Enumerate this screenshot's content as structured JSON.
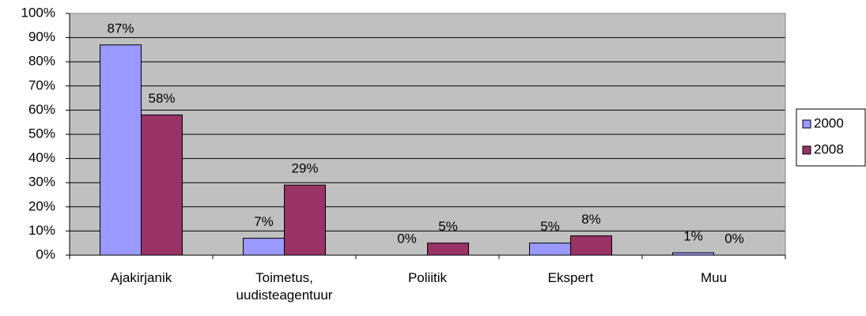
{
  "chart_data": {
    "type": "bar",
    "categories": [
      "Ajakirjanik",
      "Toimetus, uudisteagentuur",
      "Poliitik",
      "Ekspert",
      "Muu"
    ],
    "series": [
      {
        "name": "2000",
        "color": "#9999ff",
        "values": [
          87,
          7,
          0,
          5,
          1
        ],
        "value_labels": [
          "87%",
          "7%",
          "0%",
          "5%",
          "1%"
        ]
      },
      {
        "name": "2008",
        "color": "#993366",
        "values": [
          58,
          29,
          5,
          8,
          0
        ],
        "value_labels": [
          "58%",
          "29%",
          "5%",
          "8%",
          "0%"
        ]
      }
    ],
    "ylim": [
      0,
      100
    ],
    "yticks": [
      {
        "value": 0,
        "label": "0%"
      },
      {
        "value": 10,
        "label": "10%"
      },
      {
        "value": 20,
        "label": "20%"
      },
      {
        "value": 30,
        "label": "30%"
      },
      {
        "value": 40,
        "label": "40%"
      },
      {
        "value": 50,
        "label": "50%"
      },
      {
        "value": 60,
        "label": "60%"
      },
      {
        "value": 70,
        "label": "70%"
      },
      {
        "value": 80,
        "label": "80%"
      },
      {
        "value": 90,
        "label": "90%"
      },
      {
        "value": 100,
        "label": "100%"
      }
    ],
    "grid": true,
    "background": "#c0c0c0",
    "legend": "right"
  }
}
